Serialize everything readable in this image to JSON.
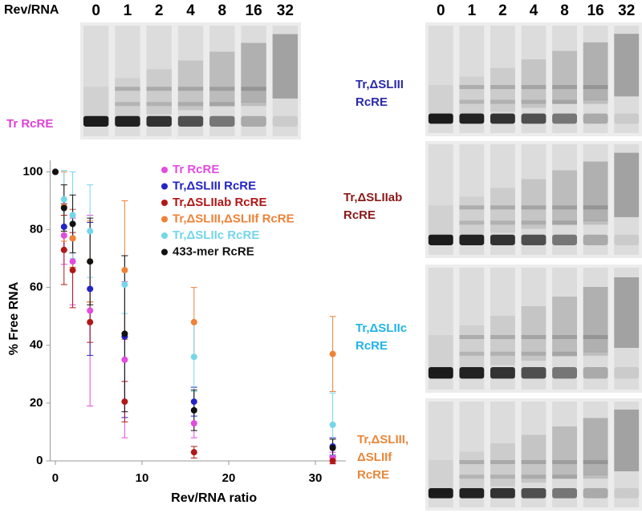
{
  "gels": {
    "top_left": {
      "corner_label": "Rev/RNA",
      "lanes": [
        "0",
        "1",
        "2",
        "4",
        "8",
        "16",
        "32"
      ],
      "label": [
        "Tr RcRE"
      ],
      "color": "#e040d8"
    },
    "right": {
      "lanes": [
        "0",
        "1",
        "2",
        "4",
        "8",
        "16",
        "32"
      ],
      "panels": [
        {
          "label": [
            "Tr,ΔSLIII",
            "RcRE"
          ],
          "color": "#2a2aa8"
        },
        {
          "label": [
            "Tr,ΔSLIIab",
            "RcRE"
          ],
          "color": "#8b1a1a"
        },
        {
          "label": [
            "Tr,ΔSLIIc",
            "RcRE"
          ],
          "color": "#22b4e6"
        },
        {
          "label": [
            "Tr,ΔSLIII,",
            "ΔSLIIf",
            "RcRE"
          ],
          "color": "#e8873a"
        }
      ]
    }
  },
  "chart_data": {
    "type": "scatter",
    "x_label": "Rev/RNA ratio",
    "y_label": "% Free RNA",
    "x": [
      0,
      1,
      2,
      4,
      8,
      16,
      32
    ],
    "series": [
      {
        "name": "Tr RcRE",
        "color": "#e24ce0",
        "values": [
          100,
          78,
          69,
          52,
          35,
          13,
          1
        ],
        "errors": [
          0,
          10,
          15,
          33,
          27,
          5,
          2
        ]
      },
      {
        "name": "Tr,ΔSLIII RcRE",
        "color": "#2323c8",
        "values": [
          100,
          81,
          77,
          59.5,
          43,
          20.5,
          5
        ],
        "errors": [
          0,
          8,
          10,
          23,
          28,
          5,
          3
        ]
      },
      {
        "name": "Tr,ΔSLIIab RcRE",
        "color": "#b01818",
        "values": [
          100,
          73,
          66,
          48,
          20.5,
          3,
          0
        ],
        "errors": [
          0,
          12,
          13,
          7,
          7,
          2,
          1
        ]
      },
      {
        "name": "Tr,ΔSLIII,ΔSLIIf RcRE",
        "color": "#ef8236",
        "values": [
          100,
          88,
          77,
          69,
          66,
          48,
          37
        ],
        "errors": [
          0,
          12,
          10,
          14,
          24,
          12,
          13
        ]
      },
      {
        "name": "Tr,ΔSLIIc RcRE",
        "color": "#74d6e8",
        "values": [
          100,
          90.5,
          85,
          79.5,
          61,
          36,
          12.5
        ],
        "errors": [
          0,
          10,
          15,
          16,
          10,
          12,
          11
        ]
      },
      {
        "name": "433-mer RcRE",
        "color": "#111111",
        "values": [
          100,
          87.5,
          82,
          69,
          44,
          17.5,
          4.5
        ],
        "errors": [
          0,
          8,
          10,
          15,
          27,
          7,
          3
        ]
      }
    ],
    "xlim": [
      -0.6,
      33.5
    ],
    "ylim": [
      0,
      104
    ],
    "xticks": [
      0,
      10,
      20,
      30
    ],
    "yticks": [
      0,
      20,
      40,
      60,
      80,
      100
    ]
  }
}
